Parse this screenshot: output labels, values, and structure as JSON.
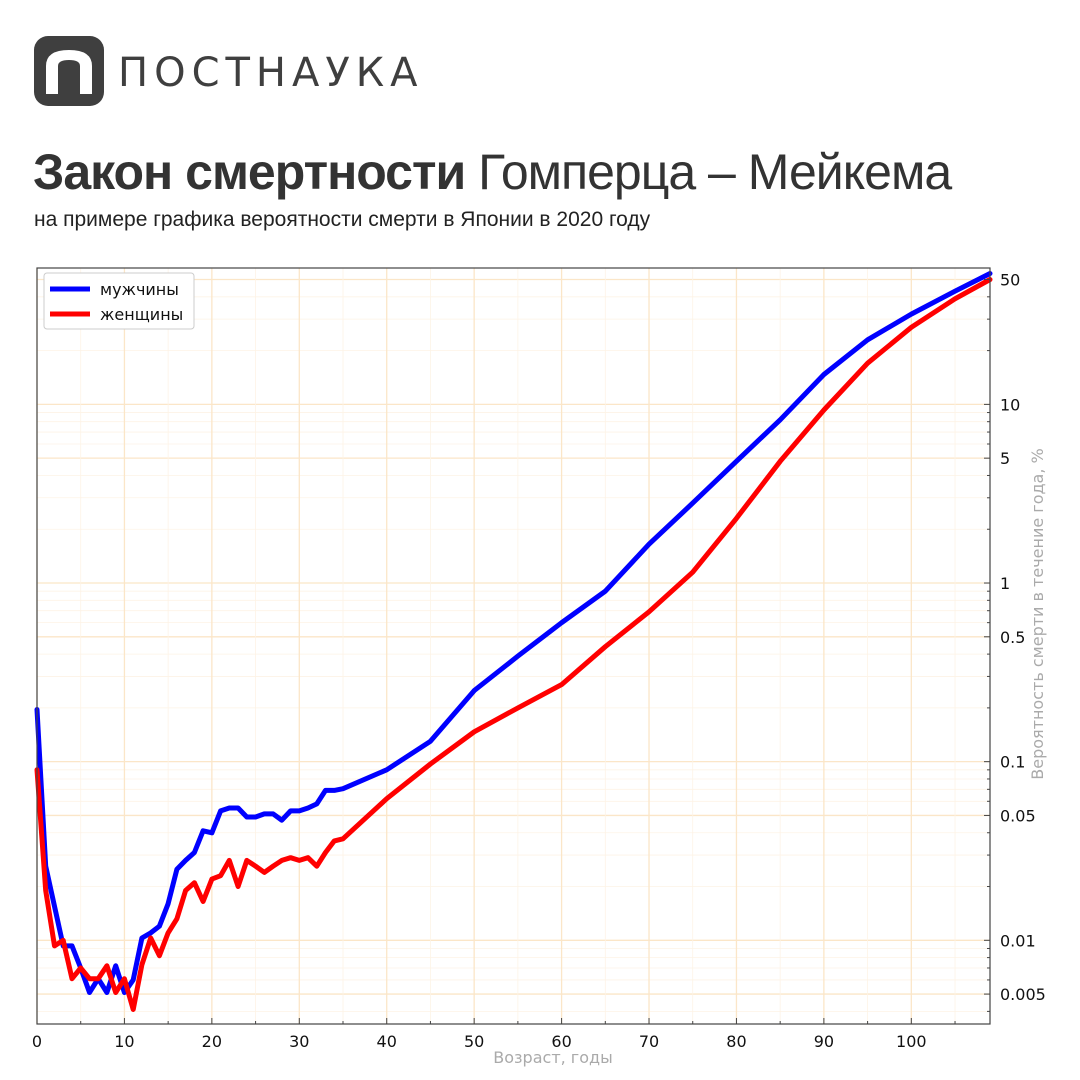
{
  "brand": {
    "name": "ПОСТНАУКА"
  },
  "header": {
    "title_bold": "Закон смертности",
    "title_regular": " Гомперца – Мейкема",
    "subtitle": "на примере графика вероятности смерти в Японии в 2020 году"
  },
  "chart_data": {
    "type": "line",
    "title": "Закон смертности Гомперца – Мейкема",
    "xlabel": "Возраст, годы",
    "ylabel": "Вероятность смерти в течение года, %",
    "xlim": [
      0,
      109
    ],
    "ylim": [
      0.0034,
      58
    ],
    "yscale": "log",
    "grid": true,
    "legend_position": "top-left",
    "x_ticks": [
      "0",
      "10",
      "20",
      "30",
      "40",
      "50",
      "60",
      "70",
      "80",
      "90",
      "100"
    ],
    "y_ticks": [
      {
        "value": 50,
        "label": "50"
      },
      {
        "value": 10,
        "label": "10"
      },
      {
        "value": 5,
        "label": "5"
      },
      {
        "value": 1,
        "label": "1"
      },
      {
        "value": 0.5,
        "label": "0.5"
      },
      {
        "value": 0.1,
        "label": "0.1"
      },
      {
        "value": 0.05,
        "label": "0.05"
      },
      {
        "value": 0.01,
        "label": "0.01"
      },
      {
        "value": 0.005,
        "label": "0.005"
      }
    ],
    "x": [
      0,
      1,
      2,
      3,
      4,
      5,
      6,
      7,
      8,
      9,
      10,
      11,
      12,
      13,
      14,
      15,
      16,
      17,
      18,
      19,
      20,
      21,
      22,
      23,
      24,
      25,
      26,
      27,
      28,
      29,
      30,
      31,
      32,
      33,
      34,
      35,
      40,
      45,
      50,
      55,
      60,
      65,
      70,
      75,
      80,
      85,
      90,
      95,
      100,
      105,
      109
    ],
    "series": [
      {
        "name": "мужчины",
        "color": "#0000ff",
        "values": [
          0.196,
          0.026,
          0.0155,
          0.0093,
          0.0093,
          0.007,
          0.0051,
          0.0061,
          0.0051,
          0.0072,
          0.0051,
          0.006,
          0.0103,
          0.011,
          0.012,
          0.016,
          0.025,
          0.028,
          0.031,
          0.041,
          0.04,
          0.053,
          0.055,
          0.055,
          0.049,
          0.049,
          0.051,
          0.051,
          0.047,
          0.053,
          0.053,
          0.055,
          0.058,
          0.069,
          0.069,
          0.0706,
          0.09,
          0.13,
          0.25,
          0.39,
          0.6,
          0.9,
          1.65,
          2.8,
          4.8,
          8.2,
          14.7,
          23,
          32,
          43,
          54
        ]
      },
      {
        "name": "женщины",
        "color": "#ff0000",
        "values": [
          0.09,
          0.019,
          0.0093,
          0.01,
          0.0061,
          0.007,
          0.0061,
          0.0061,
          0.0072,
          0.0051,
          0.0061,
          0.0041,
          0.0073,
          0.0103,
          0.0082,
          0.011,
          0.0132,
          0.019,
          0.021,
          0.0165,
          0.022,
          0.023,
          0.028,
          0.02,
          0.028,
          0.026,
          0.024,
          0.026,
          0.028,
          0.029,
          0.028,
          0.029,
          0.026,
          0.031,
          0.036,
          0.037,
          0.062,
          0.097,
          0.147,
          0.2,
          0.27,
          0.44,
          0.69,
          1.15,
          2.3,
          4.8,
          9.3,
          17,
          27,
          39,
          50
        ]
      }
    ]
  }
}
